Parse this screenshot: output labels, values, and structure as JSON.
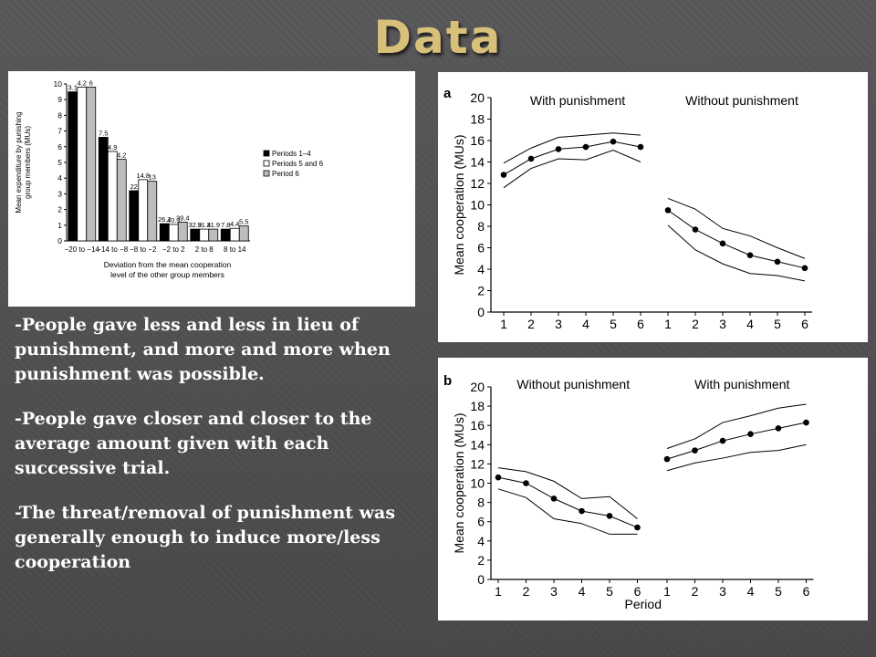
{
  "slide": {
    "title": "Data",
    "bullets": [
      "-People gave less and less in lieu of punishment, and more and more when punishment was possible.",
      "-People gave closer and closer to the average amount given with each successive trial.",
      "-The threat/removal of punishment was generally enough to induce more/less cooperation"
    ]
  },
  "colors": {
    "title": "#d8c07a",
    "background": "#525254",
    "text": "#ffffff"
  },
  "chart_data": [
    {
      "type": "bar",
      "ylabel": "Mean expenditure by punishing group members (MUs)",
      "xlabel": "Deviation from the mean cooperation level of the other group members",
      "categories": [
        "−20 to −14",
        "−14 to −8",
        "−8 to −2",
        "−2 to 2",
        "2 to 8",
        "8 to 14"
      ],
      "series": [
        {
          "name": "Periods 1–4",
          "values": [
            9.5,
            6.6,
            3.2,
            1.1,
            0.75,
            0.75
          ],
          "labels": [
            "3.1",
            "7.5",
            "22",
            "26.7",
            "32.9",
            "7.8"
          ],
          "color": "#000000"
        },
        {
          "name": "Periods 5 and 6",
          "values": [
            9.8,
            5.7,
            3.9,
            1.05,
            0.75,
            0.8
          ],
          "labels": [
            "4.2",
            "4.9",
            "14.8",
            "40.3",
            "31.4",
            "4.4"
          ],
          "color": "#ffffff"
        },
        {
          "name": "Period 6",
          "values": [
            9.8,
            5.2,
            3.8,
            1.2,
            0.75,
            0.95
          ],
          "labels": [
            "6",
            "4.2",
            "13",
            "39.4",
            "31.9",
            "5.5"
          ],
          "color": "#bdbdbd"
        }
      ],
      "ylim": [
        0,
        10
      ],
      "yticks": [
        0,
        1,
        2,
        3,
        4,
        5,
        6,
        7,
        8,
        9,
        10
      ],
      "legend": "right"
    },
    {
      "type": "line",
      "panel_label": "a",
      "ylabel": "Mean cooperation (MUs)",
      "x": [
        1,
        2,
        3,
        4,
        5,
        6
      ],
      "ylim": [
        0,
        20
      ],
      "yticks": [
        0,
        2,
        4,
        6,
        8,
        10,
        12,
        14,
        16,
        18,
        20
      ],
      "groups": [
        {
          "label": "With punishment",
          "mean": [
            12.8,
            14.3,
            15.2,
            15.4,
            15.9,
            15.4
          ],
          "upper": [
            13.9,
            15.3,
            16.3,
            16.5,
            16.7,
            16.5
          ],
          "lower": [
            11.6,
            13.4,
            14.3,
            14.2,
            15.1,
            14.0
          ]
        },
        {
          "label": "Without punishment",
          "mean": [
            9.5,
            7.7,
            6.4,
            5.3,
            4.7,
            4.1
          ],
          "upper": [
            10.6,
            9.6,
            7.8,
            7.1,
            6.0,
            5.0
          ],
          "lower": [
            8.1,
            5.8,
            4.5,
            3.6,
            3.4,
            2.9
          ]
        }
      ]
    },
    {
      "type": "line",
      "panel_label": "b",
      "ylabel": "Mean cooperation (MUs)",
      "xlabel": "Period",
      "x": [
        1,
        2,
        3,
        4,
        5,
        6
      ],
      "ylim": [
        0,
        20
      ],
      "yticks": [
        0,
        2,
        4,
        6,
        8,
        10,
        12,
        14,
        16,
        18,
        20
      ],
      "groups": [
        {
          "label": "Without punishment",
          "mean": [
            10.6,
            10.0,
            8.4,
            7.1,
            6.6,
            5.4
          ],
          "upper": [
            11.6,
            11.2,
            10.2,
            8.4,
            8.6,
            6.3
          ],
          "lower": [
            9.4,
            8.5,
            6.3,
            5.8,
            4.7,
            4.7
          ]
        },
        {
          "label": "With punishment",
          "mean": [
            12.5,
            13.4,
            14.4,
            15.1,
            15.7,
            16.3
          ],
          "upper": [
            13.6,
            14.6,
            16.3,
            17.0,
            17.8,
            18.2
          ],
          "lower": [
            11.3,
            12.1,
            12.6,
            13.2,
            13.4,
            14.0
          ]
        }
      ]
    }
  ]
}
